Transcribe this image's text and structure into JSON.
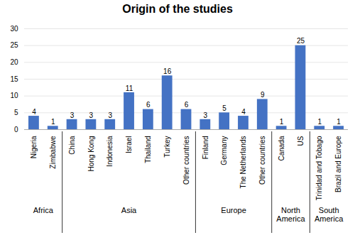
{
  "chart_data": {
    "type": "bar",
    "title": "Origin of the studies",
    "categories": [
      "Nigeria",
      "Zimbabwe",
      "China",
      "Hong Kong",
      "Indonesia",
      "Israel",
      "Thailand",
      "Turkey",
      "Other countries",
      "Finland",
      "Germany",
      "The Netherlands",
      "Other countries",
      "Canada",
      "US",
      "Trinidad and Tobago",
      "Brazil and Europe"
    ],
    "values": [
      4,
      1,
      3,
      3,
      3,
      11,
      6,
      16,
      6,
      3,
      5,
      4,
      9,
      1,
      25,
      1,
      1
    ],
    "color": "#4472C4",
    "ylim": [
      0,
      30
    ],
    "yticks": [
      0,
      5,
      10,
      15,
      20,
      25,
      30
    ],
    "grid": true,
    "data_labels": true,
    "groups": [
      {
        "name": "Africa",
        "start": 0,
        "end": 1
      },
      {
        "name": "Asia",
        "start": 2,
        "end": 8
      },
      {
        "name": "Europe",
        "start": 9,
        "end": 12
      },
      {
        "name": "North\nAmerica",
        "start": 13,
        "end": 14
      },
      {
        "name": "South\nAmerica",
        "start": 15,
        "end": 16
      }
    ]
  }
}
